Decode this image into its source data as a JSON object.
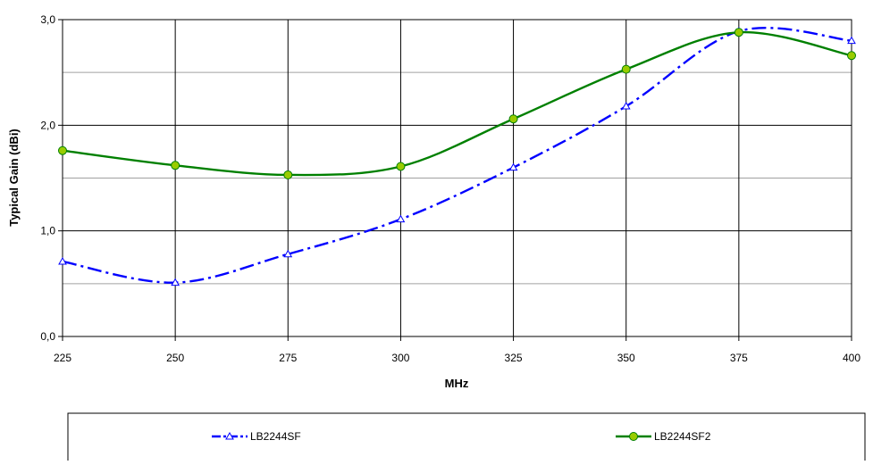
{
  "chart_data": {
    "type": "line",
    "title": "",
    "xlabel": "MHz",
    "ylabel": "Typical Gain (dBi)",
    "x": [
      225,
      250,
      275,
      300,
      325,
      350,
      375,
      400
    ],
    "x_tick_labels": [
      "225",
      "250",
      "275",
      "300",
      "325",
      "350",
      "375",
      "400"
    ],
    "xlim": [
      225,
      400
    ],
    "ylim": [
      0,
      3
    ],
    "y_ticks": [
      0,
      1,
      2,
      3
    ],
    "y_tick_labels": [
      "0,0",
      "1,0",
      "2,0",
      "3,0"
    ],
    "y_minor_grid": [
      0.5,
      1.5,
      2.5
    ],
    "grid": true,
    "legend_position": "bottom",
    "series": [
      {
        "name": "LB2244SF",
        "values": [
          0.71,
          0.51,
          0.78,
          1.11,
          1.6,
          2.18,
          2.89,
          2.8
        ],
        "color": "#0000FF",
        "line_style": "dash-dot",
        "marker": "triangle"
      },
      {
        "name": "LB2244SF2",
        "values": [
          1.76,
          1.62,
          1.53,
          1.61,
          2.06,
          2.53,
          2.88,
          2.66
        ],
        "color": "#008000",
        "marker_fill": "#99CC00",
        "line_style": "solid",
        "marker": "circle"
      }
    ]
  }
}
